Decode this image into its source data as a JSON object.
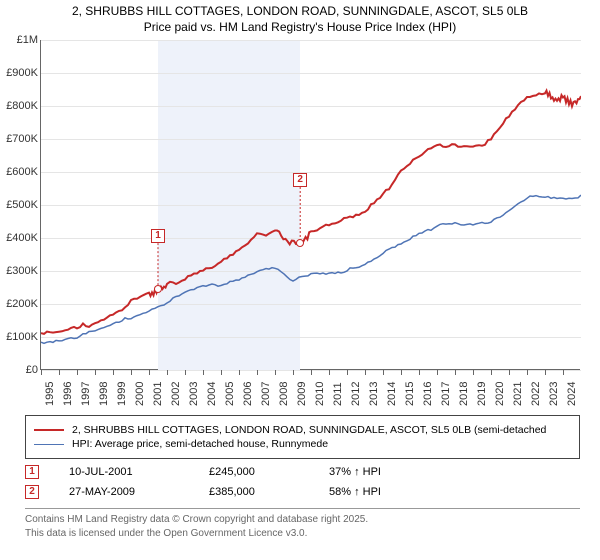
{
  "title": {
    "line1": "2, SHRUBBS HILL COTTAGES, LONDON ROAD, SUNNINGDALE, ASCOT, SL5 0LB",
    "line2": "Price paid vs. HM Land Registry's House Price Index (HPI)"
  },
  "chart": {
    "type": "line",
    "background": "#ffffff",
    "grid_color": "#e5e5e5",
    "shaded_band": {
      "x_start": 2001.5,
      "x_end": 2009.4,
      "color": "#eef2fa"
    },
    "x": {
      "min": 1995,
      "max": 2025,
      "tick_step": 1,
      "labels": [
        "1995",
        "1996",
        "1997",
        "1998",
        "1999",
        "2000",
        "2001",
        "2002",
        "2003",
        "2004",
        "2005",
        "2006",
        "2007",
        "2008",
        "2009",
        "2010",
        "2011",
        "2012",
        "2013",
        "2014",
        "2015",
        "2016",
        "2017",
        "2018",
        "2019",
        "2020",
        "2021",
        "2022",
        "2023",
        "2024"
      ]
    },
    "y": {
      "min": 0,
      "max": 1000000,
      "tick_step": 100000,
      "labels": [
        "£0",
        "£100K",
        "£200K",
        "£300K",
        "£400K",
        "£500K",
        "£600K",
        "£700K",
        "£800K",
        "£900K",
        "£1M"
      ]
    },
    "series": [
      {
        "name": "price_paid",
        "label": "2, SHRUBBS HILL COTTAGES, LONDON ROAD, SUNNINGDALE, ASCOT, SL5 0LB (semi-detached",
        "color": "#c62828",
        "width": 2,
        "points": [
          [
            1995,
            110000
          ],
          [
            1996,
            115000
          ],
          [
            1997,
            130000
          ],
          [
            1998,
            150000
          ],
          [
            1999,
            175000
          ],
          [
            2000,
            210000
          ],
          [
            2001,
            230000
          ],
          [
            2001.5,
            245000
          ],
          [
            2002,
            260000
          ],
          [
            2003,
            285000
          ],
          [
            2004,
            310000
          ],
          [
            2005,
            330000
          ],
          [
            2006,
            360000
          ],
          [
            2007,
            410000
          ],
          [
            2008,
            430000
          ],
          [
            2008.7,
            395000
          ],
          [
            2009.4,
            385000
          ],
          [
            2010,
            420000
          ],
          [
            2011,
            440000
          ],
          [
            2012,
            460000
          ],
          [
            2013,
            490000
          ],
          [
            2014,
            540000
          ],
          [
            2015,
            600000
          ],
          [
            2016,
            650000
          ],
          [
            2017,
            680000
          ],
          [
            2018,
            690000
          ],
          [
            2019,
            685000
          ],
          [
            2020,
            700000
          ],
          [
            2021,
            770000
          ],
          [
            2022,
            830000
          ],
          [
            2023,
            850000
          ],
          [
            2023.5,
            820000
          ],
          [
            2024,
            830000
          ],
          [
            2024.5,
            810000
          ],
          [
            2025,
            830000
          ]
        ]
      },
      {
        "name": "hpi",
        "label": "HPI: Average price, semi-detached house, Runnymede",
        "color": "#4f74b5",
        "width": 1.5,
        "points": [
          [
            1995,
            90000
          ],
          [
            1996,
            95000
          ],
          [
            1997,
            105000
          ],
          [
            1998,
            120000
          ],
          [
            1999,
            140000
          ],
          [
            2000,
            165000
          ],
          [
            2001,
            185000
          ],
          [
            2002,
            210000
          ],
          [
            2003,
            235000
          ],
          [
            2004,
            255000
          ],
          [
            2005,
            265000
          ],
          [
            2006,
            280000
          ],
          [
            2007,
            305000
          ],
          [
            2008,
            310000
          ],
          [
            2009,
            270000
          ],
          [
            2010,
            300000
          ],
          [
            2011,
            300000
          ],
          [
            2012,
            305000
          ],
          [
            2013,
            320000
          ],
          [
            2014,
            355000
          ],
          [
            2015,
            390000
          ],
          [
            2016,
            420000
          ],
          [
            2017,
            440000
          ],
          [
            2018,
            445000
          ],
          [
            2019,
            440000
          ],
          [
            2020,
            455000
          ],
          [
            2021,
            490000
          ],
          [
            2022,
            530000
          ],
          [
            2023,
            525000
          ],
          [
            2024,
            520000
          ],
          [
            2025,
            530000
          ]
        ]
      }
    ],
    "sale_markers": [
      {
        "id": "1",
        "x": 2001.5,
        "y": 245000,
        "box_y_offset": -60
      },
      {
        "id": "2",
        "x": 2009.4,
        "y": 385000,
        "box_y_offset": -70
      }
    ]
  },
  "legend": {
    "items": [
      {
        "color": "#c62828",
        "width": 2,
        "label_path": "chart.series.0.label"
      },
      {
        "color": "#4f74b5",
        "width": 1.5,
        "label_path": "chart.series.1.label"
      }
    ]
  },
  "sales": [
    {
      "id": "1",
      "date": "10-JUL-2001",
      "price": "£245,000",
      "hpi": "37% ↑ HPI"
    },
    {
      "id": "2",
      "date": "27-MAY-2009",
      "price": "£385,000",
      "hpi": "58% ↑ HPI"
    }
  ],
  "footer": {
    "line1": "Contains HM Land Registry data © Crown copyright and database right 2025.",
    "line2": "This data is licensed under the Open Government Licence v3.0."
  }
}
